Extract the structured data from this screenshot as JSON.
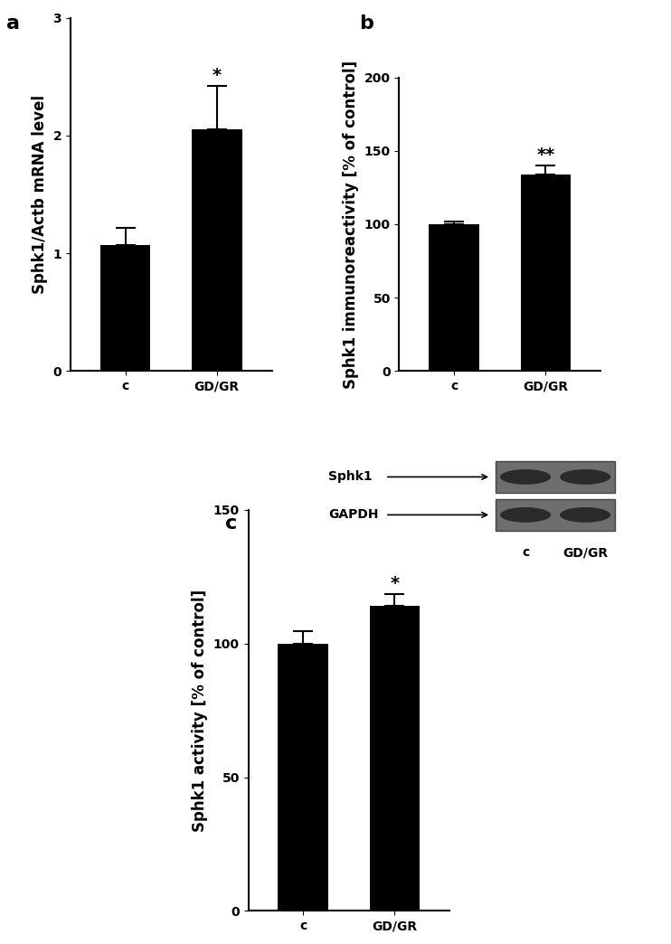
{
  "chart_data": [
    {
      "type": "bar",
      "panel": "a",
      "y_label": "Sphk1/Actb mRNA level",
      "categories": [
        "c",
        "GD/GR"
      ],
      "values": [
        1.07,
        2.05
      ],
      "errors": [
        0.15,
        0.37
      ],
      "color": "#000000",
      "ylim": [
        0,
        3
      ],
      "yticks": [
        0,
        1,
        2,
        3
      ],
      "annotations": [
        {
          "category": "GD/GR",
          "text": "*"
        }
      ]
    },
    {
      "type": "bar",
      "panel": "b",
      "y_label": "Sphk1 immunoreactivity [% of control]",
      "categories": [
        "c",
        "GD/GR"
      ],
      "values": [
        100,
        134
      ],
      "errors": [
        2,
        6
      ],
      "color": "#000000",
      "ylim": [
        0,
        200
      ],
      "yticks": [
        0,
        50,
        100,
        150,
        200
      ],
      "annotations": [
        {
          "category": "GD/GR",
          "text": "**"
        }
      ]
    },
    {
      "type": "bar",
      "panel": "c",
      "y_label": "Sphk1 activity [% of control]",
      "categories": [
        "c",
        "GD/GR"
      ],
      "values": [
        100,
        114
      ],
      "errors": [
        4.5,
        4.5
      ],
      "color": "#000000",
      "ylim": [
        0,
        150
      ],
      "yticks": [
        0,
        50,
        100,
        150
      ],
      "annotations": [
        {
          "category": "GD/GR",
          "text": "*"
        }
      ]
    }
  ],
  "blot": {
    "bands": [
      "Sphk1",
      "GAPDH"
    ],
    "lanes": [
      "c",
      "GD/GR"
    ]
  }
}
